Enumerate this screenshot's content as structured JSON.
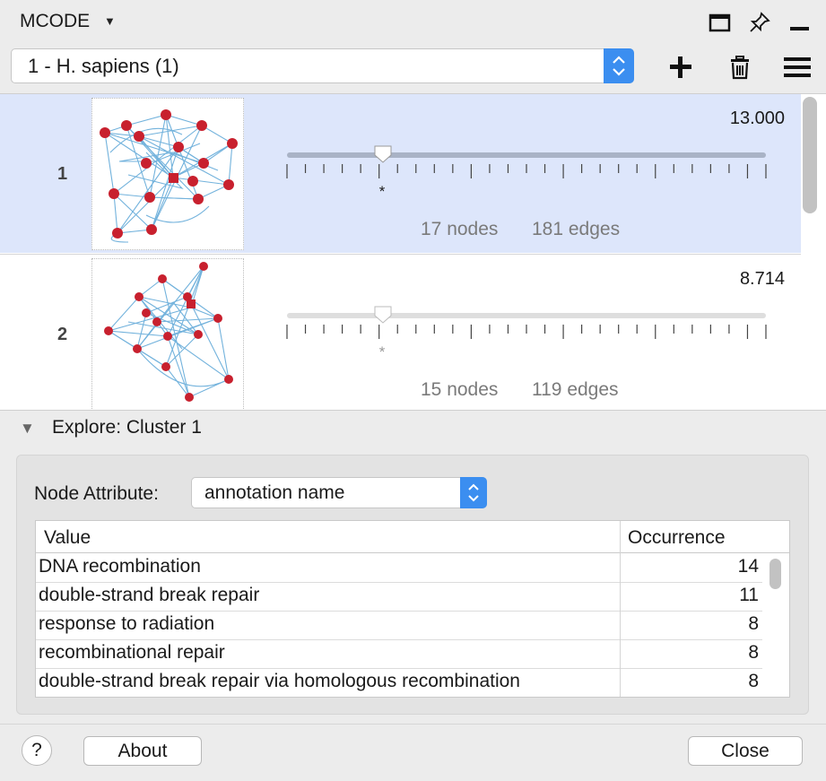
{
  "panel": {
    "title": "MCODE",
    "title_icon": "chevron-down-icon",
    "header_icons": [
      "window-float-icon",
      "pin-icon",
      "minimize-icon"
    ]
  },
  "network_select": {
    "value": "1 - H. sapiens (1)",
    "tool_icons": [
      "plus-icon",
      "trash-icon",
      "hamburger-menu-icon"
    ]
  },
  "clusters": [
    {
      "rank": "1",
      "score": "13.000",
      "nodes": "17 nodes",
      "edges": "181 edges",
      "marker": "*",
      "slider_position": 0.2,
      "selected": true
    },
    {
      "rank": "2",
      "score": "8.714",
      "nodes": "15 nodes",
      "edges": "119 edges",
      "marker": "*",
      "slider_position": 0.2,
      "selected": false
    }
  ],
  "explore": {
    "title": "Explore: Cluster 1",
    "attribute_label": "Node Attribute:",
    "attribute_value": "annotation name",
    "table": {
      "columns": [
        "Value",
        "Occurrence"
      ],
      "rows": [
        {
          "value": "DNA recombination",
          "occurrence": "14"
        },
        {
          "value": "double-strand break repair",
          "occurrence": "11"
        },
        {
          "value": "response to radiation",
          "occurrence": "8"
        },
        {
          "value": "recombinational repair",
          "occurrence": "8"
        },
        {
          "value": "double-strand break repair via homologous recombination",
          "occurrence": "8"
        }
      ]
    }
  },
  "footer": {
    "help_label": "?",
    "about_label": "About",
    "close_label": "Close"
  },
  "colors": {
    "selected_row": "#dde6fb",
    "accent": "#3b8ef0",
    "node": "#c8202e",
    "edge": "#5aa5d6"
  }
}
